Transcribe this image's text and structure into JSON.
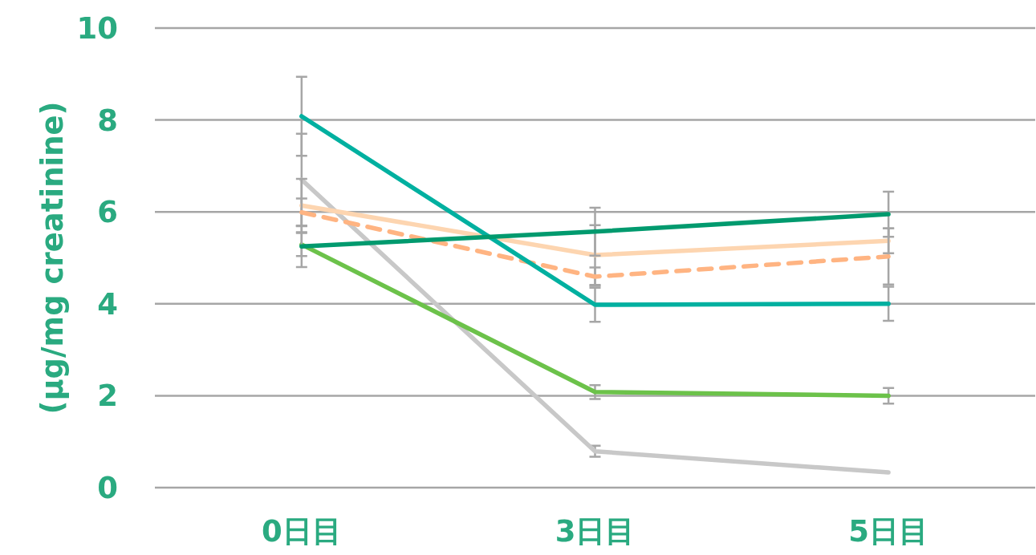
{
  "chart_data": {
    "type": "line",
    "ylabel": "(µg/mg creatinine)",
    "categories": [
      "0日目",
      "3日目",
      "5日目"
    ],
    "ylim": [
      0,
      10
    ],
    "yticks": [
      0,
      2,
      4,
      6,
      8,
      10
    ],
    "grid": "y",
    "series": [
      {
        "color": "#c8c8c8",
        "values": [
          6.7,
          0.79,
          0.33
        ],
        "errors": [
          1.0,
          0.12,
          null
        ]
      },
      {
        "color": "#fdd5b0",
        "values": [
          6.14,
          5.06,
          5.37
        ],
        "errors": [
          0.58,
          0.65,
          0.27
        ]
      },
      {
        "color": "#ffb482",
        "line_style": "dashed",
        "values": [
          5.99,
          4.59,
          5.03
        ],
        "errors": [
          0.3,
          0.2,
          0.61
        ]
      },
      {
        "color": "#6cc24a",
        "values": [
          5.29,
          2.08,
          2.0
        ],
        "errors": [
          0.25,
          0.15,
          0.17
        ]
      },
      {
        "color": "#00b0a0",
        "values": [
          8.08,
          3.98,
          4.0
        ],
        "errors": [
          0.86,
          0.37,
          0.37
        ]
      },
      {
        "color": "#009a6e",
        "values": [
          5.25,
          5.57,
          5.95
        ],
        "errors": [
          0.45,
          0.52,
          0.49
        ]
      }
    ]
  }
}
